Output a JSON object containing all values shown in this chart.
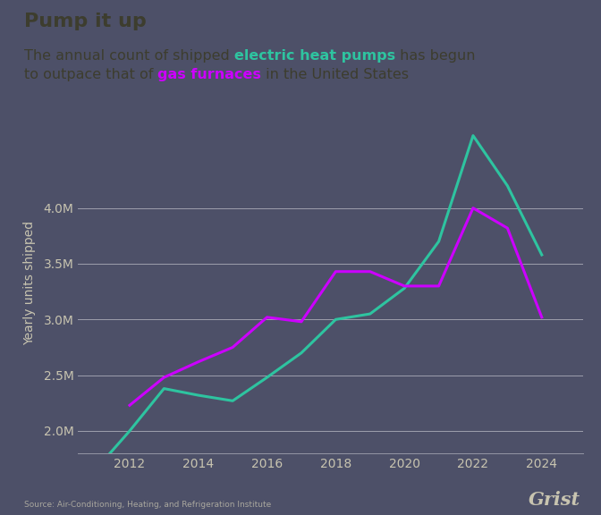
{
  "title": "Pump it up",
  "background_color": "#4d5068",
  "text_color": "#3d3d2e",
  "tick_label_color": "#c8c4b0",
  "source_text": "Source: Air-Conditioning, Heating, and Refrigeration Institute",
  "grist_text": "Grist",
  "heat_pump_color": "#2ec4a0",
  "gas_furnace_color": "#cc00ff",
  "heat_pump_years": [
    2011,
    2012,
    2013,
    2014,
    2015,
    2016,
    2017,
    2018,
    2019,
    2020,
    2021,
    2022,
    2023,
    2024
  ],
  "heat_pump_values": [
    1650000,
    2000000,
    2380000,
    2320000,
    2270000,
    2480000,
    2700000,
    3000000,
    3050000,
    3280000,
    3700000,
    4650000,
    4200000,
    3580000
  ],
  "gas_furnace_years": [
    2012,
    2013,
    2014,
    2015,
    2016,
    2017,
    2018,
    2019,
    2020,
    2021,
    2022,
    2023,
    2024
  ],
  "gas_furnace_values": [
    2230000,
    2480000,
    2620000,
    2750000,
    3020000,
    2980000,
    3430000,
    3430000,
    3300000,
    3300000,
    4000000,
    3820000,
    3020000
  ],
  "ylim": [
    1800000,
    4850000
  ],
  "xlim": [
    2010.5,
    2025.2
  ],
  "yticks": [
    2000000,
    2500000,
    3000000,
    3500000,
    4000000
  ],
  "xticks": [
    2012,
    2014,
    2016,
    2018,
    2020,
    2022,
    2024
  ],
  "line_width": 2.2,
  "subtitle_fontsize": 11.5,
  "title_fontsize": 16,
  "tick_fontsize": 10,
  "ylabel_fontsize": 10
}
